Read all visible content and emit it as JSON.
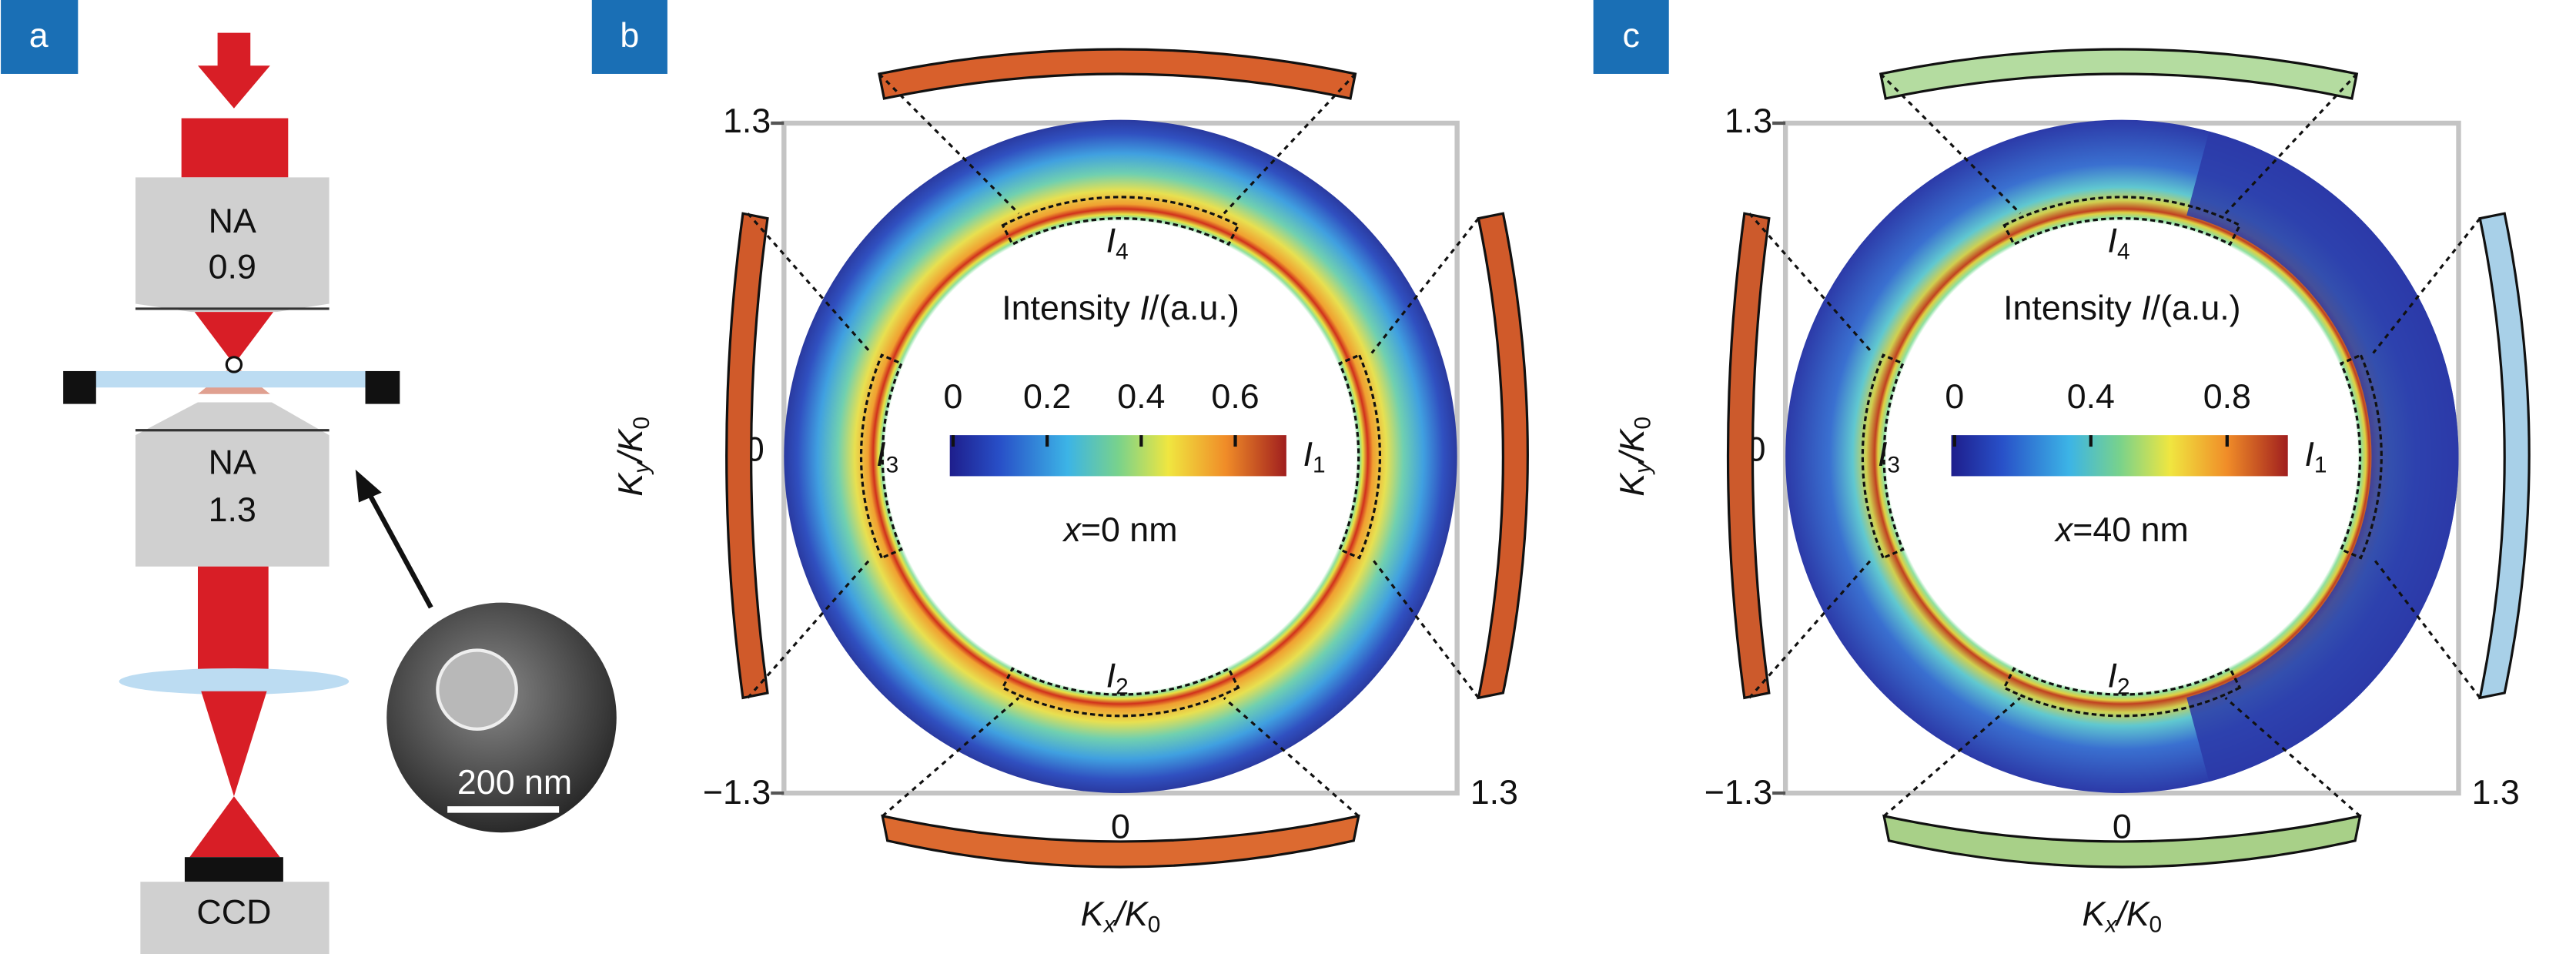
{
  "panels": [
    {
      "label": "a",
      "top_objective": [
        "NA",
        "0.9"
      ],
      "bottom_objective": [
        "NA",
        "1.3"
      ],
      "scale_bar": "200 nm",
      "detector": "CCD"
    },
    {
      "label": "b",
      "y_ticks": [
        "1.3",
        "0",
        "−1.3"
      ],
      "x_ticks": [
        "0",
        "1.3"
      ],
      "y_label": [
        "K",
        "y",
        "/K",
        "0"
      ],
      "x_label": [
        "K",
        "x",
        "/K",
        "0"
      ],
      "intensities": [
        [
          "I",
          "4"
        ],
        [
          "I",
          "3"
        ],
        [
          "I",
          "1"
        ],
        [
          "I",
          "2"
        ]
      ],
      "colorbar_title": [
        "Intensity ",
        "I",
        "/(a.u.)"
      ],
      "colorbar_ticks": [
        "0",
        "0.2",
        "0.4",
        "0.6"
      ],
      "condition": [
        "x",
        "=0 nm"
      ]
    },
    {
      "label": "c",
      "y_ticks": [
        "1.3",
        "0",
        "−1.3"
      ],
      "x_ticks": [
        "0",
        "1.3"
      ],
      "y_label": [
        "K",
        "y",
        "/K",
        "0"
      ],
      "x_label": [
        "K",
        "x",
        "/K",
        "0"
      ],
      "intensities": [
        [
          "I",
          "4"
        ],
        [
          "I",
          "3"
        ],
        [
          "I",
          "1"
        ],
        [
          "I",
          "2"
        ]
      ],
      "colorbar_title": [
        "Intensity ",
        "I",
        "/(a.u.)"
      ],
      "colorbar_ticks": [
        "0",
        "0.4",
        "0.8"
      ],
      "condition": [
        "x",
        "=40 nm"
      ]
    }
  ]
}
